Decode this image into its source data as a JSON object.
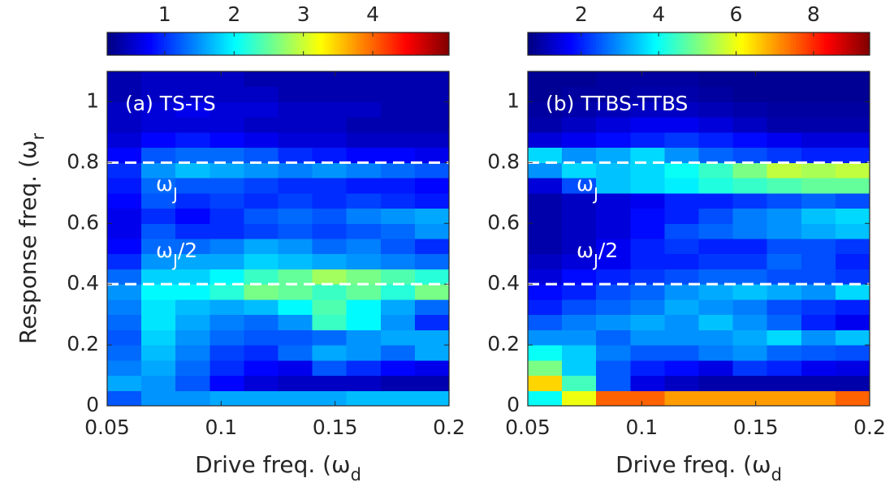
{
  "chart_data": [
    {
      "type": "heatmap",
      "title": "(a) TS-TS",
      "colormap": "jet",
      "xlabel": {
        "text": "Drive freq. (ω",
        "sub": "d"
      },
      "ylabel": {
        "text": "Response freq. (ω",
        "sub": "r"
      },
      "x": [
        0.0575,
        0.0725,
        0.0875,
        0.1025,
        0.1175,
        0.1325,
        0.1475,
        0.1625,
        0.1775,
        0.1925
      ],
      "y": [
        0.025,
        0.075,
        0.125,
        0.175,
        0.225,
        0.275,
        0.325,
        0.375,
        0.425,
        0.475,
        0.525,
        0.575,
        0.625,
        0.675,
        0.725,
        0.775,
        0.825,
        0.875,
        0.925,
        0.975,
        1.025,
        1.075
      ],
      "z": [
        [
          1.2,
          1.5,
          1.5,
          1.6,
          1.6,
          1.6,
          1.6,
          1.7,
          1.7,
          1.7
        ],
        [
          1.6,
          1.5,
          1.2,
          0.8,
          0.6,
          0.5,
          0.5,
          0.5,
          0.4,
          0.4
        ],
        [
          1.4,
          1.6,
          1.3,
          1.0,
          0.8,
          0.7,
          1.2,
          1.0,
          0.8,
          0.7
        ],
        [
          1.3,
          1.7,
          1.4,
          1.1,
          1.0,
          1.3,
          1.6,
          1.5,
          1.3,
          1.6
        ],
        [
          1.2,
          1.8,
          1.5,
          1.3,
          1.2,
          1.2,
          1.3,
          1.5,
          1.6,
          1.6
        ],
        [
          1.3,
          1.9,
          1.6,
          1.4,
          1.3,
          1.5,
          2.3,
          2.0,
          1.5,
          1.0
        ],
        [
          1.4,
          1.9,
          1.7,
          1.6,
          1.7,
          2.0,
          2.4,
          2.0,
          1.6,
          1.3
        ],
        [
          1.5,
          2.0,
          2.0,
          2.2,
          2.6,
          2.5,
          2.3,
          2.5,
          2.2,
          2.6
        ],
        [
          1.3,
          1.8,
          1.8,
          2.0,
          2.3,
          2.5,
          2.8,
          2.6,
          2.4,
          2.2
        ],
        [
          1.0,
          1.5,
          1.6,
          1.6,
          1.8,
          1.7,
          1.6,
          1.5,
          1.4,
          1.3
        ],
        [
          0.8,
          1.3,
          1.3,
          1.4,
          1.6,
          1.5,
          1.3,
          1.4,
          1.2,
          1.0
        ],
        [
          0.7,
          1.2,
          1.0,
          1.0,
          1.1,
          1.2,
          1.1,
          1.2,
          1.3,
          1.5
        ],
        [
          0.7,
          1.0,
          0.8,
          1.0,
          1.2,
          1.3,
          1.2,
          1.4,
          1.5,
          1.6
        ],
        [
          0.8,
          1.2,
          1.0,
          1.1,
          1.0,
          1.1,
          1.0,
          1.1,
          1.0,
          0.9
        ],
        [
          0.9,
          1.3,
          1.2,
          1.2,
          1.1,
          1.0,
          1.0,
          0.9,
          0.9,
          0.8
        ],
        [
          1.0,
          1.5,
          1.7,
          1.6,
          1.5,
          1.4,
          1.5,
          1.4,
          1.3,
          1.2
        ],
        [
          0.8,
          1.2,
          1.3,
          1.3,
          1.2,
          1.0,
          0.9,
          0.8,
          0.8,
          0.7
        ],
        [
          0.6,
          0.8,
          0.9,
          0.8,
          0.7,
          0.6,
          0.6,
          0.5,
          0.5,
          0.5
        ],
        [
          0.5,
          0.6,
          0.6,
          0.6,
          0.5,
          0.5,
          0.5,
          0.4,
          0.4,
          0.4
        ],
        [
          0.5,
          0.6,
          0.7,
          0.6,
          0.6,
          0.5,
          0.5,
          0.5,
          0.4,
          0.4
        ],
        [
          0.4,
          0.5,
          0.5,
          0.5,
          0.5,
          0.4,
          0.4,
          0.4,
          0.4,
          0.4
        ],
        [
          0.4,
          0.5,
          0.5,
          0.5,
          0.4,
          0.4,
          0.4,
          0.4,
          0.4,
          0.4
        ]
      ],
      "xlim": [
        0.05,
        0.2
      ],
      "xticks": [
        0.05,
        0.1,
        0.15,
        0.2
      ],
      "ylim": [
        0,
        1.1
      ],
      "yticks": [
        0,
        0.2,
        0.4,
        0.6,
        0.8,
        1
      ],
      "clim": [
        0.17,
        5.1
      ],
      "cticks": [
        1,
        2,
        3,
        4
      ],
      "hlines": [
        0.8,
        0.4
      ],
      "annotations": [
        {
          "text": "ω",
          "sub": "J"
        },
        {
          "text": "ω",
          "sub": "J",
          "suffix": "/2"
        }
      ]
    },
    {
      "type": "heatmap",
      "title": "(b) TTBS-TTBS",
      "colormap": "jet",
      "xlabel": {
        "text": "Drive freq. (ω",
        "sub": "d"
      },
      "x": [
        0.0575,
        0.0725,
        0.0875,
        0.1025,
        0.1175,
        0.1325,
        0.1475,
        0.1625,
        0.1775,
        0.1925
      ],
      "y": [
        0.025,
        0.075,
        0.125,
        0.175,
        0.225,
        0.275,
        0.325,
        0.375,
        0.425,
        0.475,
        0.525,
        0.575,
        0.625,
        0.675,
        0.725,
        0.775,
        0.825,
        0.875,
        0.925,
        0.975,
        1.025,
        1.075
      ],
      "z": [
        [
          4.0,
          6.0,
          7.5,
          7.5,
          7.0,
          7.0,
          7.0,
          7.0,
          7.0,
          7.5
        ],
        [
          6.5,
          4.5,
          2.5,
          1.5,
          1.2,
          1.0,
          1.0,
          1.0,
          1.0,
          1.0
        ],
        [
          5.0,
          3.5,
          2.5,
          2.0,
          1.8,
          1.5,
          2.2,
          2.0,
          1.6,
          1.5
        ],
        [
          4.0,
          3.5,
          2.8,
          2.5,
          2.5,
          2.8,
          3.0,
          2.6,
          2.5,
          2.4
        ],
        [
          3.0,
          3.0,
          2.6,
          3.0,
          3.0,
          3.0,
          3.2,
          3.6,
          3.0,
          3.4
        ],
        [
          2.5,
          2.8,
          3.0,
          3.2,
          3.0,
          3.4,
          3.0,
          2.6,
          2.0,
          1.6
        ],
        [
          2.0,
          2.4,
          2.6,
          2.8,
          3.2,
          3.0,
          2.8,
          2.4,
          2.2,
          2.0
        ],
        [
          1.8,
          2.0,
          2.4,
          2.6,
          3.0,
          3.2,
          3.4,
          3.2,
          3.0,
          3.6
        ],
        [
          1.4,
          1.8,
          2.0,
          2.2,
          2.4,
          2.6,
          2.6,
          2.4,
          2.4,
          2.2
        ],
        [
          1.2,
          1.4,
          1.6,
          2.0,
          2.0,
          2.2,
          2.2,
          2.6,
          2.4,
          2.0
        ],
        [
          1.0,
          1.2,
          1.6,
          2.0,
          2.2,
          2.0,
          2.0,
          2.4,
          2.4,
          2.2
        ],
        [
          1.0,
          1.2,
          1.4,
          1.8,
          2.4,
          2.6,
          2.8,
          3.0,
          3.2,
          3.4
        ],
        [
          1.0,
          1.2,
          1.4,
          1.8,
          2.0,
          2.4,
          2.8,
          3.0,
          3.4,
          3.6
        ],
        [
          1.0,
          1.2,
          1.4,
          1.6,
          2.0,
          2.0,
          2.2,
          2.4,
          2.6,
          2.4
        ],
        [
          1.4,
          2.4,
          3.4,
          3.6,
          3.8,
          4.2,
          4.4,
          4.6,
          4.8,
          4.8
        ],
        [
          3.0,
          3.6,
          3.4,
          3.6,
          4.0,
          4.4,
          5.0,
          5.6,
          5.4,
          5.6
        ],
        [
          3.6,
          3.0,
          3.2,
          3.6,
          3.0,
          2.6,
          2.4,
          2.2,
          2.0,
          2.0
        ],
        [
          1.4,
          1.6,
          1.8,
          2.0,
          2.2,
          2.0,
          1.8,
          1.6,
          1.4,
          1.4
        ],
        [
          1.0,
          1.2,
          1.4,
          1.6,
          1.6,
          1.4,
          1.2,
          1.0,
          1.0,
          1.0
        ],
        [
          0.9,
          1.0,
          1.1,
          1.2,
          1.2,
          1.1,
          1.0,
          0.9,
          0.9,
          0.9
        ],
        [
          0.8,
          0.9,
          0.9,
          1.0,
          1.0,
          0.9,
          0.8,
          0.8,
          0.8,
          0.8
        ],
        [
          0.8,
          0.8,
          0.9,
          0.9,
          0.9,
          0.8,
          0.8,
          0.8,
          0.8,
          0.8
        ]
      ],
      "xlim": [
        0.05,
        0.2
      ],
      "xticks": [
        0.05,
        0.1,
        0.15,
        0.2
      ],
      "ylim": [
        0,
        1.1
      ],
      "yticks": [
        0,
        0.2,
        0.4,
        0.6,
        0.8,
        1
      ],
      "clim": [
        0.62,
        9.45
      ],
      "cticks": [
        2,
        4,
        6,
        8
      ],
      "hlines": [
        0.8,
        0.4
      ],
      "annotations": [
        {
          "text": "ω",
          "sub": "J"
        },
        {
          "text": "ω",
          "sub": "J",
          "suffix": "/2"
        }
      ]
    }
  ]
}
